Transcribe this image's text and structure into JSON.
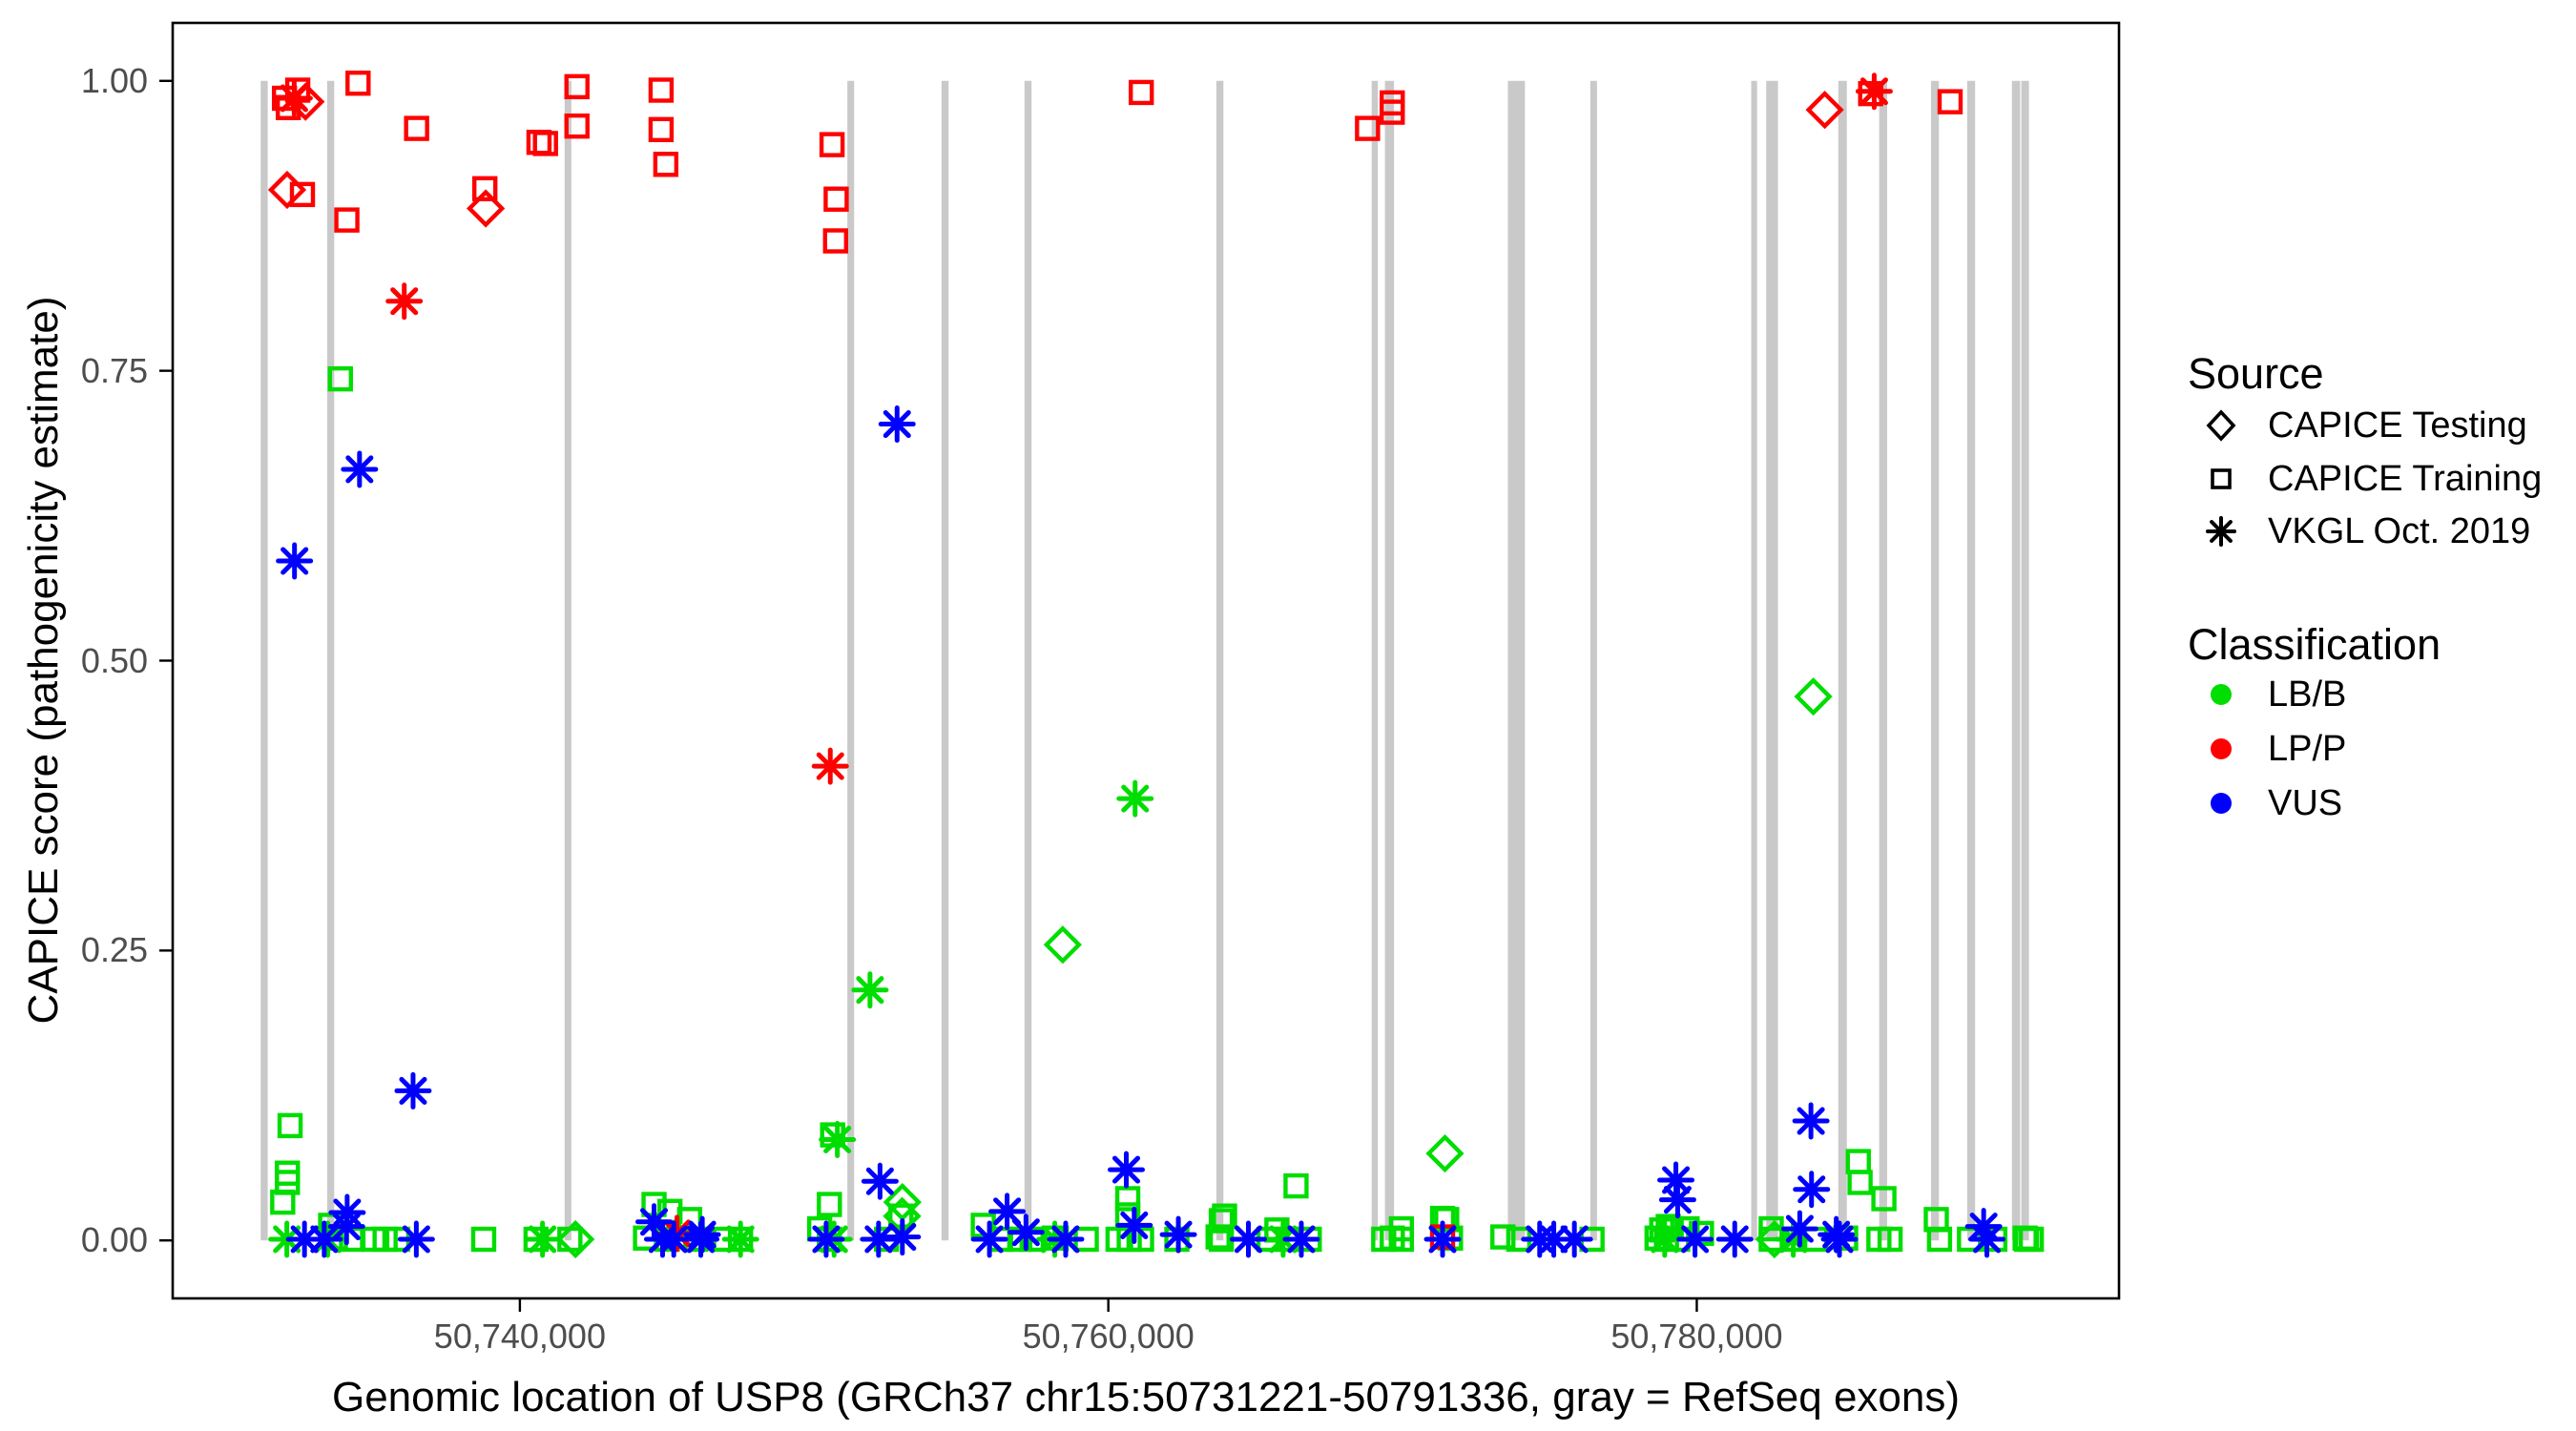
{
  "legend": {
    "source_title": "Source",
    "source_items": [
      {
        "label": "CAPICE Testing",
        "marker": "diamond"
      },
      {
        "label": "CAPICE Training",
        "marker": "square"
      },
      {
        "label": "VKGL Oct. 2019",
        "marker": "asterisk"
      }
    ],
    "classification_title": "Classification",
    "classification_items": [
      {
        "label": "LB/B",
        "color_key": "lbb"
      },
      {
        "label": "LP/P",
        "color_key": "lpp"
      },
      {
        "label": "VUS",
        "color_key": "vus"
      }
    ]
  },
  "chart_data": {
    "type": "scatter",
    "title": "",
    "xlabel": "Genomic location of USP8 (GRCh37 chr15:50731221-50791336, gray = RefSeq exons)",
    "ylabel": "CAPICE score (pathogenicity estimate)",
    "xlim": [
      50728200,
      50794350
    ],
    "ylim": [
      -0.05,
      1.05
    ],
    "grid": false,
    "legend_position": "right",
    "x_ticks": [
      {
        "value": 50740000,
        "label": "50,740,000"
      },
      {
        "value": 50760000,
        "label": "50,760,000"
      },
      {
        "value": 50780000,
        "label": "50,780,000"
      }
    ],
    "y_ticks": [
      {
        "value": 0.0,
        "label": "0.00"
      },
      {
        "value": 0.25,
        "label": "0.25"
      },
      {
        "value": 0.5,
        "label": "0.50"
      },
      {
        "value": 0.75,
        "label": "0.75"
      },
      {
        "value": 1.0,
        "label": "1.00"
      }
    ],
    "colors": {
      "lbb": "#00dd00",
      "lpp": "#ff0000",
      "vus": "#0000ff",
      "exon": "#c9c9c9",
      "tick_text": "#4d4d4d"
    },
    "exons": [
      [
        50731190,
        50731430
      ],
      [
        50733450,
        50733690
      ],
      [
        50741520,
        50741750
      ],
      [
        50751130,
        50751360
      ],
      [
        50754330,
        50754570
      ],
      [
        50757150,
        50757390
      ],
      [
        50763670,
        50763910
      ],
      [
        50768950,
        50769160
      ],
      [
        50769400,
        50769710
      ],
      [
        50773580,
        50774160
      ],
      [
        50776380,
        50776610
      ],
      [
        50781850,
        50782050
      ],
      [
        50782360,
        50782760
      ],
      [
        50784810,
        50785100
      ],
      [
        50786200,
        50786470
      ],
      [
        50787960,
        50788230
      ],
      [
        50789190,
        50789460
      ],
      [
        50790710,
        50790990
      ],
      [
        50791030,
        50791290
      ]
    ],
    "series": [
      {
        "name": "CAPICE Training / LB/B",
        "source": "CAPICE Training",
        "classification": "LB/B",
        "marker": "square",
        "color_key": "lbb",
        "points": [
          [
            50731940,
            0.033
          ],
          [
            50732100,
            0.058
          ],
          [
            50732100,
            0.05
          ],
          [
            50732190,
            0.099
          ],
          [
            50733570,
            0.013
          ],
          [
            50733730,
            0.002
          ],
          [
            50733900,
            0.743
          ],
          [
            50734280,
            0.001
          ],
          [
            50735040,
            0.001
          ],
          [
            50735420,
            0.001
          ],
          [
            50735850,
            0.001
          ],
          [
            50738770,
            0.001
          ],
          [
            50740550,
            0.001
          ],
          [
            50741700,
            0.001
          ],
          [
            50744270,
            0.002
          ],
          [
            50744560,
            0.031
          ],
          [
            50745010,
            0.001
          ],
          [
            50745100,
            0.025
          ],
          [
            50745770,
            0.018
          ],
          [
            50745980,
            0.001
          ],
          [
            50746960,
            0.001
          ],
          [
            50747500,
            0.001
          ],
          [
            50750190,
            0.01
          ],
          [
            50750520,
            0.031
          ],
          [
            50750520,
            0.001
          ],
          [
            50750630,
            0.091
          ],
          [
            50752460,
            0.001
          ],
          [
            50752950,
            0.021
          ],
          [
            50755750,
            0.013
          ],
          [
            50756340,
            0.001
          ],
          [
            50756990,
            0.001
          ],
          [
            50757410,
            0.001
          ],
          [
            50758230,
            0.002
          ],
          [
            50759250,
            0.001
          ],
          [
            50760330,
            0.001
          ],
          [
            50760660,
            0.036
          ],
          [
            50760660,
            0.022
          ],
          [
            50760710,
            0.001
          ],
          [
            50761130,
            0.001
          ],
          [
            50762330,
            0.001
          ],
          [
            50763730,
            0.003
          ],
          [
            50763840,
            0.017
          ],
          [
            50763950,
            0.021
          ],
          [
            50763840,
            0.001
          ],
          [
            50765460,
            0.001
          ],
          [
            50765730,
            0.009
          ],
          [
            50766110,
            0.001
          ],
          [
            50766380,
            0.047
          ],
          [
            50766830,
            0.001
          ],
          [
            50769360,
            0.001
          ],
          [
            50769650,
            0.002
          ],
          [
            50769960,
            0.01
          ],
          [
            50769960,
            0.001
          ],
          [
            50771360,
            0.019
          ],
          [
            50771500,
            0.018
          ],
          [
            50771630,
            0.002
          ],
          [
            50773410,
            0.003
          ],
          [
            50773950,
            0.001
          ],
          [
            50776440,
            0.001
          ],
          [
            50778650,
            0.002
          ],
          [
            50778810,
            0.009
          ],
          [
            50779030,
            0.012
          ],
          [
            50779130,
            0.01
          ],
          [
            50778970,
            0.001
          ],
          [
            50779350,
            0.001
          ],
          [
            50779670,
            0.01
          ],
          [
            50780160,
            0.006
          ],
          [
            50782530,
            0.01
          ],
          [
            50782530,
            0.001
          ],
          [
            50783280,
            0.001
          ],
          [
            50784040,
            0.001
          ],
          [
            50785060,
            0.002
          ],
          [
            50785490,
            0.068
          ],
          [
            50785550,
            0.05
          ],
          [
            50786360,
            0.036
          ],
          [
            50786190,
            0.001
          ],
          [
            50786570,
            0.001
          ],
          [
            50788140,
            0.018
          ],
          [
            50788250,
            0.001
          ],
          [
            50789270,
            0.001
          ],
          [
            50790130,
            0.001
          ],
          [
            50791160,
            0.002
          ],
          [
            50791210,
            0.001
          ],
          [
            50791370,
            0.001
          ]
        ]
      },
      {
        "name": "CAPICE Training / LP/P",
        "source": "CAPICE Training",
        "classification": "LP/P",
        "marker": "square",
        "color_key": "lpp",
        "points": [
          [
            50732000,
            0.985
          ],
          [
            50732130,
            0.977
          ],
          [
            50732450,
            0.992
          ],
          [
            50732610,
            0.902
          ],
          [
            50734120,
            0.88
          ],
          [
            50734500,
            0.998
          ],
          [
            50736490,
            0.959
          ],
          [
            50738810,
            0.907
          ],
          [
            50740650,
            0.947
          ],
          [
            50740870,
            0.946
          ],
          [
            50741940,
            0.995
          ],
          [
            50741940,
            0.961
          ],
          [
            50744800,
            0.992
          ],
          [
            50744800,
            0.958
          ],
          [
            50744960,
            0.928
          ],
          [
            50750610,
            0.945
          ],
          [
            50750750,
            0.898
          ],
          [
            50750730,
            0.862
          ],
          [
            50761120,
            0.99
          ],
          [
            50768810,
            0.959
          ],
          [
            50769650,
            0.981
          ],
          [
            50769650,
            0.973
          ],
          [
            50785910,
            0.989
          ],
          [
            50788610,
            0.982
          ],
          [
            50771360,
            0.003
          ]
        ]
      },
      {
        "name": "CAPICE Testing / LB/B",
        "source": "CAPICE Testing",
        "classification": "LB/B",
        "marker": "diamond",
        "color_key": "lbb",
        "points": [
          [
            50741890,
            0.001
          ],
          [
            50752990,
            0.021
          ],
          [
            50753000,
            0.033
          ],
          [
            50758450,
            0.255
          ],
          [
            50771440,
            0.075
          ],
          [
            50782640,
            0.001
          ],
          [
            50783960,
            0.469
          ]
        ]
      },
      {
        "name": "CAPICE Testing / LP/P",
        "source": "CAPICE Testing",
        "classification": "LP/P",
        "marker": "diamond",
        "color_key": "lpp",
        "points": [
          [
            50732090,
            0.906
          ],
          [
            50732715,
            0.982
          ],
          [
            50738840,
            0.89
          ],
          [
            50784350,
            0.975
          ]
        ]
      },
      {
        "name": "VKGL Oct. 2019 / LB/B",
        "source": "VKGL Oct. 2019",
        "classification": "LB/B",
        "marker": "asterisk",
        "color_key": "lbb",
        "points": [
          [
            50732080,
            0.001
          ],
          [
            50733470,
            0.001
          ],
          [
            50740770,
            0.001
          ],
          [
            50747500,
            0.001
          ],
          [
            50750680,
            0.001
          ],
          [
            50750790,
            0.087
          ],
          [
            50751900,
            0.216
          ],
          [
            50758180,
            0.001
          ],
          [
            50760910,
            0.381
          ],
          [
            50765940,
            0.001
          ],
          [
            50778910,
            0.001
          ],
          [
            50783280,
            0.001
          ]
        ]
      },
      {
        "name": "VKGL Oct. 2019 / LP/P",
        "source": "VKGL Oct. 2019",
        "classification": "LP/P",
        "marker": "asterisk",
        "color_key": "lpp",
        "points": [
          [
            50732330,
            0.985
          ],
          [
            50736070,
            0.81
          ],
          [
            50745340,
            0.006
          ],
          [
            50750550,
            0.409
          ],
          [
            50786030,
            0.991
          ]
        ]
      },
      {
        "name": "VKGL Oct. 2019 / VUS",
        "source": "VKGL Oct. 2019",
        "classification": "VUS",
        "marker": "asterisk",
        "color_key": "vus",
        "points": [
          [
            50732340,
            0.586
          ],
          [
            50732680,
            0.001
          ],
          [
            50733350,
            0.001
          ],
          [
            50734110,
            0.012
          ],
          [
            50734130,
            0.024
          ],
          [
            50734550,
            0.665
          ],
          [
            50736370,
            0.129
          ],
          [
            50736480,
            0.001
          ],
          [
            50744560,
            0.016
          ],
          [
            50744850,
            0.001
          ],
          [
            50745230,
            0.001
          ],
          [
            50746150,
            0.001
          ],
          [
            50746200,
            0.005
          ],
          [
            50750410,
            0.001
          ],
          [
            50752190,
            0.001
          ],
          [
            50752240,
            0.051
          ],
          [
            50752820,
            0.704
          ],
          [
            50753000,
            0.003
          ],
          [
            50755960,
            0.001
          ],
          [
            50756560,
            0.025
          ],
          [
            50757200,
            0.007
          ],
          [
            50758550,
            0.001
          ],
          [
            50760610,
            0.061
          ],
          [
            50760880,
            0.013
          ],
          [
            50762380,
            0.005
          ],
          [
            50764760,
            0.001
          ],
          [
            50766560,
            0.001
          ],
          [
            50771360,
            0.001
          ],
          [
            50774660,
            0.001
          ],
          [
            50775140,
            0.001
          ],
          [
            50775840,
            0.001
          ],
          [
            50779290,
            0.052
          ],
          [
            50779350,
            0.035
          ],
          [
            50779940,
            0.001
          ],
          [
            50781290,
            0.001
          ],
          [
            50783500,
            0.01
          ],
          [
            50783880,
            0.103
          ],
          [
            50783900,
            0.044
          ],
          [
            50784740,
            0.005
          ],
          [
            50784850,
            0.001
          ],
          [
            50789750,
            0.012
          ],
          [
            50789860,
            0.001
          ]
        ]
      }
    ]
  }
}
